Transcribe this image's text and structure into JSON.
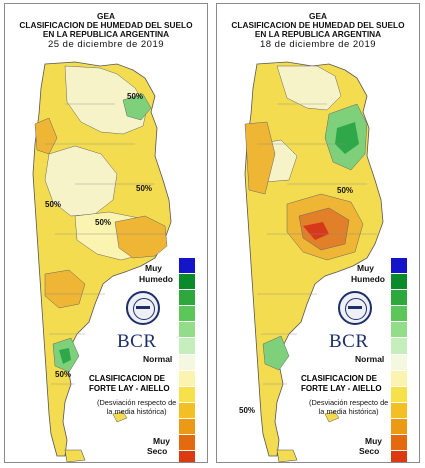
{
  "panels": [
    {
      "header": {
        "line1": "GEA",
        "line2": "CLASIFICACION DE HUMEDAD DEL SUELO",
        "line3": "EN LA REPUBLICA ARGENTINA",
        "date": "25 de diciembre de 2019"
      },
      "contour_labels": [
        "50%",
        "50%",
        "50%",
        "50%",
        "50%"
      ],
      "legend": {
        "muy_top": "Muy",
        "humedo": "Humedo",
        "normal": "Normal",
        "muy_bottom": "Muy",
        "seco": "Seco"
      },
      "logo_text": "BCR",
      "classification": {
        "line1": "CLASIFICACION DE",
        "line2": "FORTE LAY - AIELLO"
      },
      "description": {
        "line1": "(Desviación respecto de",
        "line2": "la media histórica)"
      }
    },
    {
      "header": {
        "line1": "GEA",
        "line2": "CLASIFICACION DE HUMEDAD DEL SUELO",
        "line3": "EN LA REPUBLICA ARGENTINA",
        "date": "18 de diciembre de 2019"
      },
      "contour_labels": [
        "50%",
        "50%"
      ],
      "legend": {
        "muy_top": "Muy",
        "humedo": "Humedo",
        "normal": "Normal",
        "muy_bottom": "Muy",
        "seco": "Seco"
      },
      "logo_text": "BCR",
      "classification": {
        "line1": "CLASIFICACION DE",
        "line2": "FORTE LAY - AIELLO"
      },
      "description": {
        "line1": "(Desviación respecto de",
        "line2": "la media histórica)"
      }
    }
  ],
  "legend_colors": [
    "#1414c8",
    "#0a8a2a",
    "#2ea83c",
    "#5cc65a",
    "#92dc8a",
    "#c6eebc",
    "#f4f8e0",
    "#fbf3b0",
    "#f6e14a",
    "#f2bf24",
    "#ec9a16",
    "#e46a10",
    "#dc3a10",
    "#d01010"
  ],
  "colors": {
    "normal": "#f7f3c8",
    "dry": "#f4dc50",
    "drier": "#efb534",
    "driest": "#e2802a",
    "extreme": "#d8381a",
    "wet": "#7fd07a",
    "wetter": "#2fa84a",
    "ocean": "#ffffff",
    "border": "#555555"
  }
}
